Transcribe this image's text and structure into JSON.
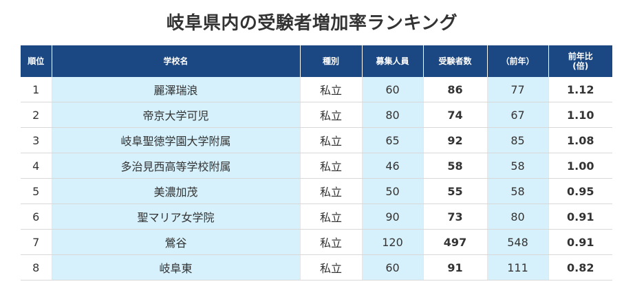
{
  "title": "岐阜県内の受験者増加率ランキング",
  "colors": {
    "header_bg": "#1b4782",
    "highlight_bg": "#d6f1fb",
    "ratio_up": "#1a1acc",
    "ratio_flat": "#333333",
    "ratio_down": "#e00000"
  },
  "table": {
    "headers": {
      "rank": "順位",
      "school": "学校名",
      "type": "種別",
      "quota": "募集人員",
      "applicants": "受験者数",
      "prev": "（前年）",
      "ratio_line1": "前年比",
      "ratio_line2": "(倍)"
    },
    "rows": [
      {
        "rank": "1",
        "school": "麗澤瑞浪",
        "type": "私立",
        "quota": "60",
        "applicants": "86",
        "prev": "77",
        "ratio": "1.12",
        "trend": "up"
      },
      {
        "rank": "2",
        "school": "帝京大学可児",
        "type": "私立",
        "quota": "80",
        "applicants": "74",
        "prev": "67",
        "ratio": "1.10",
        "trend": "up"
      },
      {
        "rank": "3",
        "school": "岐阜聖徳学園大学附属",
        "type": "私立",
        "quota": "65",
        "applicants": "92",
        "prev": "85",
        "ratio": "1.08",
        "trend": "up"
      },
      {
        "rank": "4",
        "school": "多治見西高等学校附属",
        "type": "私立",
        "quota": "46",
        "applicants": "58",
        "prev": "58",
        "ratio": "1.00",
        "trend": "flat"
      },
      {
        "rank": "5",
        "school": "美濃加茂",
        "type": "私立",
        "quota": "50",
        "applicants": "55",
        "prev": "58",
        "ratio": "0.95",
        "trend": "down"
      },
      {
        "rank": "6",
        "school": "聖マリア女学院",
        "type": "私立",
        "quota": "90",
        "applicants": "73",
        "prev": "80",
        "ratio": "0.91",
        "trend": "down"
      },
      {
        "rank": "7",
        "school": "鶯谷",
        "type": "私立",
        "quota": "120",
        "applicants": "497",
        "prev": "548",
        "ratio": "0.91",
        "trend": "down"
      },
      {
        "rank": "8",
        "school": "岐阜東",
        "type": "私立",
        "quota": "60",
        "applicants": "91",
        "prev": "111",
        "ratio": "0.82",
        "trend": "down"
      }
    ]
  }
}
